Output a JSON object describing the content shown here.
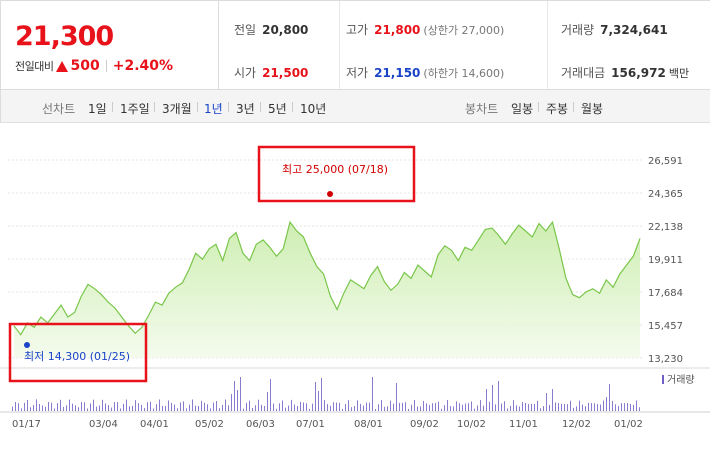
{
  "quote": {
    "price": "21,300",
    "change_label": "전일대비",
    "change": "500",
    "change_pct": "+2.40%"
  },
  "stats": {
    "prev_close": {
      "label": "전일",
      "value": "20,800"
    },
    "open": {
      "label": "시가",
      "value": "21,500"
    },
    "high": {
      "label": "고가",
      "value": "21,800",
      "note": "(상한가 27,000)"
    },
    "low": {
      "label": "저가",
      "value": "21,150",
      "note": "(하한가 14,600)"
    },
    "volume": {
      "label": "거래량",
      "value": "7,324,641"
    },
    "trade_value": {
      "label": "거래대금",
      "value": "156,972",
      "unit": "백만"
    }
  },
  "tabs": {
    "line_label": "선차트",
    "ranges": [
      "1일",
      "1주일",
      "3개월",
      "1년",
      "3년",
      "5년",
      "10년"
    ],
    "active_range": "1년",
    "candle_label": "봉차트",
    "candles": [
      "일봉",
      "주봉",
      "월봉"
    ]
  },
  "chart_data": {
    "type": "area",
    "y_ticks": [
      "26,591",
      "24,365",
      "22,138",
      "19,911",
      "17,684",
      "15,457",
      "13,230"
    ],
    "ylim": [
      13230,
      26591
    ],
    "x_ticks": [
      "01/17",
      "03/04",
      "04/01",
      "05/02",
      "06/03",
      "07/01",
      "08/01",
      "09/02",
      "10/02",
      "11/01",
      "12/02",
      "01/02"
    ],
    "max_label": "최고 25,000 (07/18)",
    "min_label": "최저 14,300 (01/25)",
    "max_value": 25000,
    "min_value": 14300,
    "volume_label": "거래량",
    "line_color": "#79c64a",
    "fill_color": "#e6f6d6",
    "highlight_color": "#e8121a",
    "marker_color_max": "#d10000",
    "marker_color_min": "#1a44c8"
  }
}
